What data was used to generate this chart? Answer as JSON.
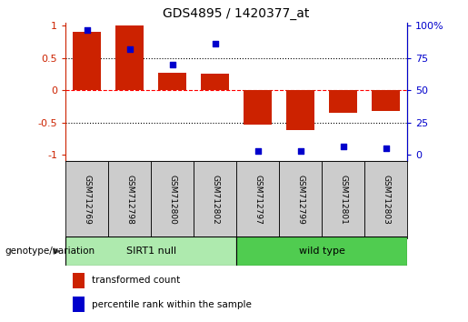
{
  "title": "GDS4895 / 1420377_at",
  "samples": [
    "GSM712769",
    "GSM712798",
    "GSM712800",
    "GSM712802",
    "GSM712797",
    "GSM712799",
    "GSM712801",
    "GSM712803"
  ],
  "red_bars": [
    0.9,
    1.0,
    0.27,
    0.26,
    -0.54,
    -0.62,
    -0.35,
    -0.33
  ],
  "blue_dots_pct": [
    97,
    82,
    70,
    86,
    3,
    3,
    6,
    5
  ],
  "groups": [
    {
      "label": "SIRT1 null",
      "start": 0,
      "end": 4,
      "color": "#aeeaae"
    },
    {
      "label": "wild type",
      "start": 4,
      "end": 8,
      "color": "#50cc50"
    }
  ],
  "group_label": "genotype/variation",
  "red_color": "#CC2200",
  "blue_color": "#0000CC",
  "bar_width": 0.65,
  "ylim": [
    -1.1,
    1.05
  ],
  "yticks": [
    -1.0,
    -0.5,
    0.0,
    0.5,
    1.0
  ],
  "ytick_labels_red": [
    "-1",
    "-0.5",
    "0",
    "0.5",
    "1"
  ],
  "pct_ticks": [
    0,
    25,
    50,
    75,
    100
  ],
  "pct_tick_labels": [
    "0",
    "25",
    "50",
    "75",
    "100%"
  ],
  "legend_red": "transformed count",
  "legend_blue": "percentile rank within the sample",
  "sample_box_color": "#cccccc",
  "background_color": "#ffffff",
  "title_fontsize": 10
}
